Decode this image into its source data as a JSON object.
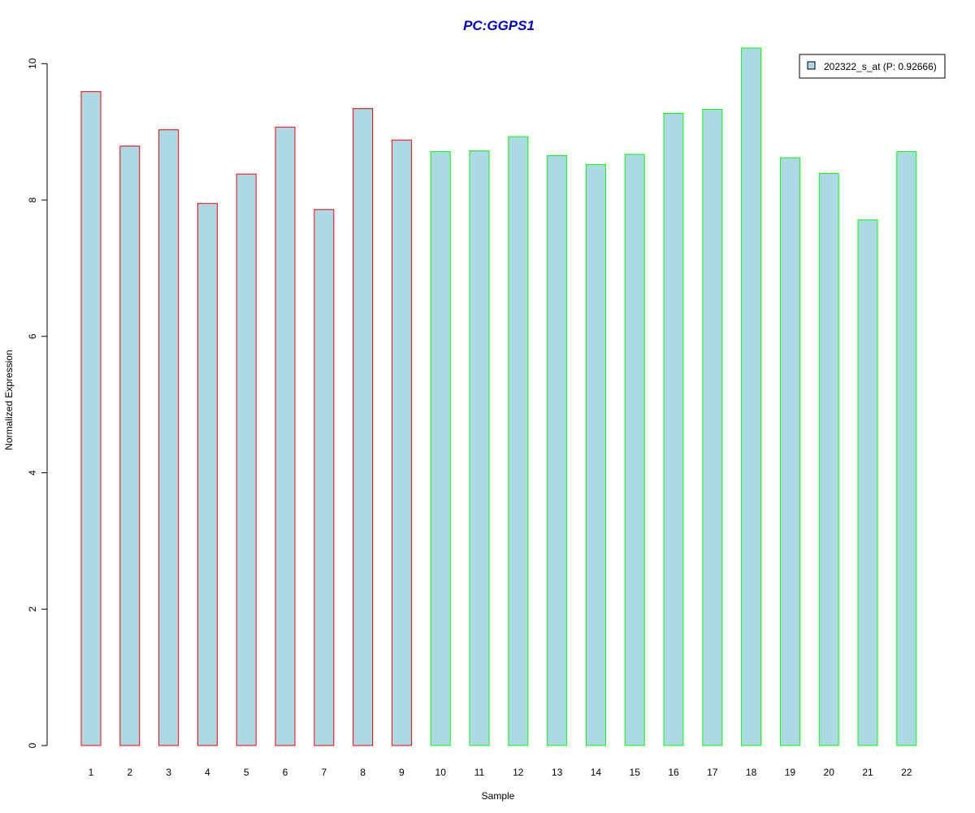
{
  "chart_data": {
    "type": "bar",
    "title": "PC:GGPS1",
    "xlabel": "Sample",
    "ylabel": "Normalized Expression",
    "categories": [
      "1",
      "2",
      "3",
      "4",
      "5",
      "6",
      "7",
      "8",
      "9",
      "10",
      "11",
      "12",
      "13",
      "14",
      "15",
      "16",
      "17",
      "18",
      "19",
      "20",
      "21",
      "22"
    ],
    "series": [
      {
        "name": "202322_s_at (P: 0.92666)",
        "values": [
          9.59,
          8.79,
          9.03,
          7.95,
          8.38,
          9.07,
          7.86,
          9.34,
          8.88,
          8.71,
          8.72,
          8.93,
          8.65,
          8.52,
          8.67,
          9.27,
          9.33,
          10.23,
          8.62,
          8.39,
          7.71,
          8.71
        ]
      }
    ],
    "bar_border_colors": [
      "#ff0000",
      "#ff0000",
      "#ff0000",
      "#ff0000",
      "#ff0000",
      "#ff0000",
      "#ff0000",
      "#ff0000",
      "#ff0000",
      "#00ff00",
      "#00ff00",
      "#00ff00",
      "#00ff00",
      "#00ff00",
      "#00ff00",
      "#00ff00",
      "#00ff00",
      "#00ff00",
      "#00ff00",
      "#00ff00",
      "#00ff00",
      "#00ff00"
    ],
    "bar_fill_color": "#add8e6",
    "title_color": "#0000cc",
    "ylim": [
      0,
      10.23
    ],
    "yticks": [
      0,
      2,
      4,
      6,
      8,
      10
    ],
    "ytick_labels": [
      "0",
      "2",
      "4",
      "6",
      "8",
      "10"
    ],
    "legend_position": "top-right",
    "grid": false
  }
}
